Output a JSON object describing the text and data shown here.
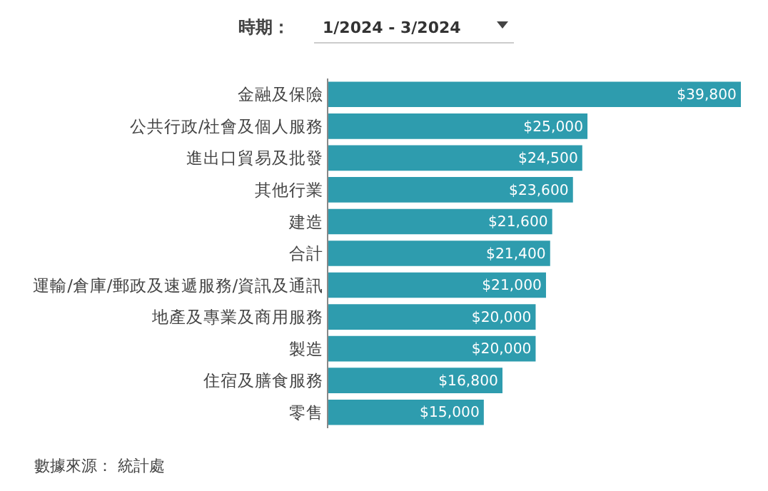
{
  "chart_data": {
    "type": "bar",
    "orientation": "horizontal",
    "title": "時期：",
    "subtitle": "1/2024 - 3/2024",
    "categories": [
      "金融及保險",
      "公共行政/社會及個人服務",
      "進出口貿易及批發",
      "其他行業",
      "建造",
      "合計",
      "運輸/倉庫/郵政及速遞服務/資訊及通訊",
      "地產及專業及商用服務",
      "製造",
      "住宿及膳食服務",
      "零售"
    ],
    "values": [
      39800,
      25000,
      24500,
      23600,
      21600,
      21400,
      21000,
      20000,
      20000,
      16800,
      15000
    ],
    "value_labels": [
      "$39,800",
      "$25,000",
      "$24,500",
      "$23,600",
      "$21,600",
      "$21,400",
      "$21,000",
      "$20,000",
      "$20,000",
      "$16,800",
      "$15,000"
    ],
    "color": "#2e9cae",
    "xlim": [
      0,
      39800
    ],
    "tick_labels": "y",
    "annotations": [
      "數據來源： 統計處"
    ]
  }
}
